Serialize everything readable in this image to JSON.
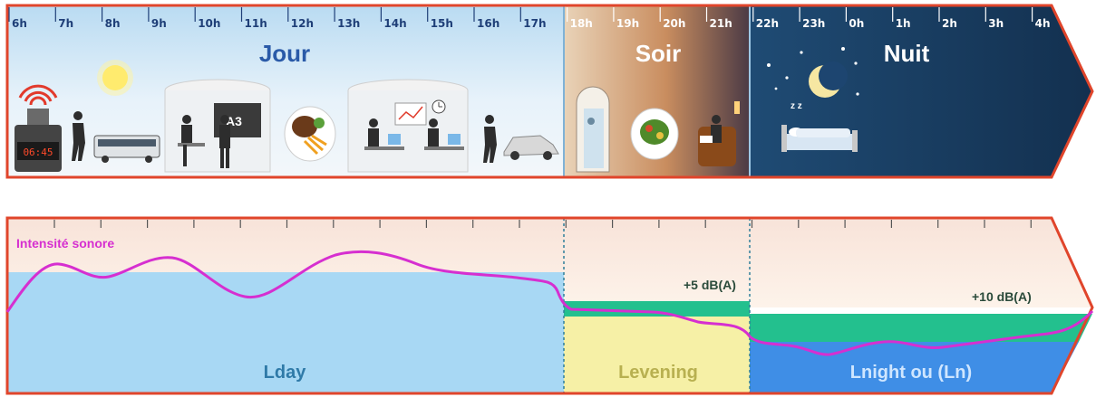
{
  "timeline": {
    "hours": [
      "6h",
      "7h",
      "8h",
      "9h",
      "10h",
      "11h",
      "12h",
      "13h",
      "14h",
      "15h",
      "16h",
      "17h",
      "18h",
      "19h",
      "20h",
      "21h",
      "22h",
      "23h",
      "0h",
      "1h",
      "2h",
      "3h",
      "4h"
    ],
    "periods": {
      "day": "Jour",
      "evening": "Soir",
      "night": "Nuit"
    },
    "clock_display": "06:45",
    "blackboard_text": "A3"
  },
  "sound_chart": {
    "series_label": "Intensité sonore",
    "evening_penalty": "+5 dB(A)",
    "night_penalty": "+10 dB(A)",
    "zones": {
      "day": "Lday",
      "evening": "Levening",
      "night": "Lnight ou (Ln)"
    }
  },
  "colors": {
    "border_red": "#e0452b",
    "day_sky": "#cfe6f6",
    "evening_sky": "#d9a97a",
    "night_sky": "#1d3f66",
    "lday_fill": "#a8d8f4",
    "levening_fill": "#f6f0a6",
    "lnight_fill": "#3f8ee6",
    "penalty_green": "#23c08e",
    "curve_magenta": "#d62fd0"
  }
}
